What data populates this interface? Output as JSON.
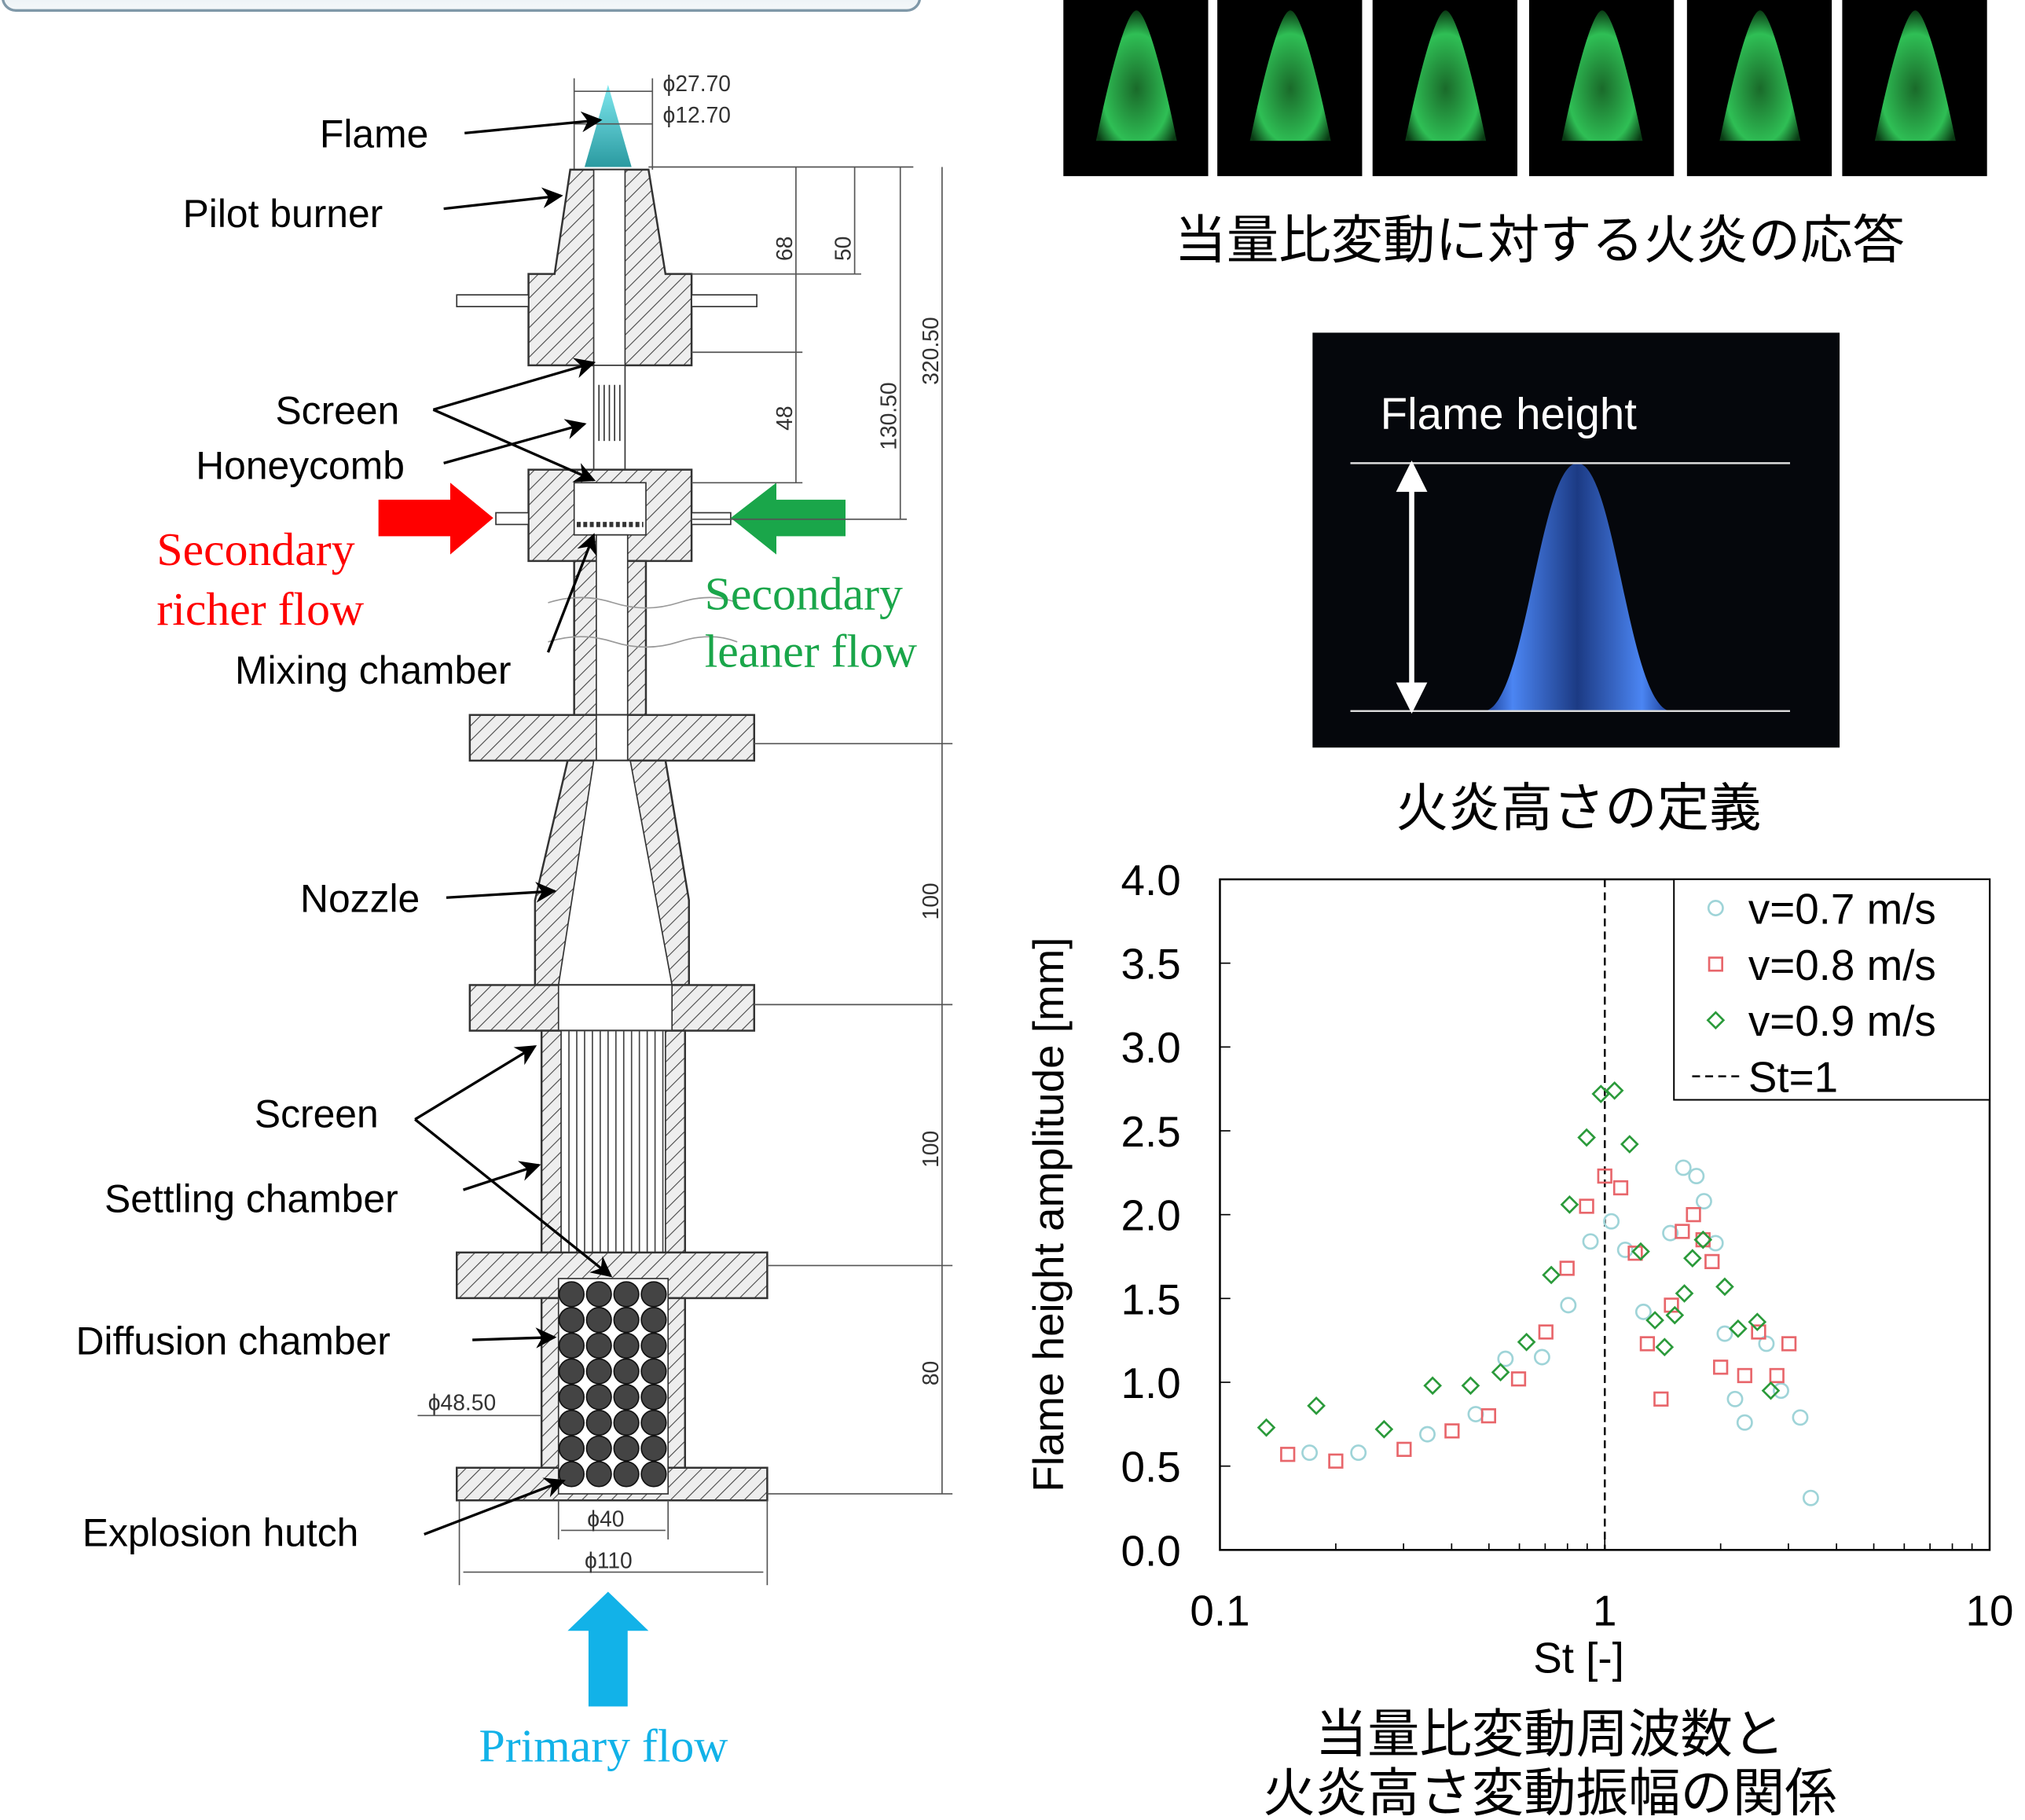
{
  "diagram": {
    "labels": {
      "flame": "Flame",
      "pilot_burner": "Pilot burner",
      "screen_upper": "Screen",
      "honeycomb": "Honeycomb",
      "secondary_richer_flow": [
        "Secondary",
        "richer flow"
      ],
      "mixing_chamber": "Mixing chamber",
      "secondary_leaner_flow": [
        "Secondary",
        "leaner flow"
      ],
      "nozzle": "Nozzle",
      "screen_lower": "Screen",
      "settling_chamber": "Settling chamber",
      "diffusion_chamber": "Diffusion chamber",
      "explosion_hutch": "Explosion hutch",
      "primary_flow": "Primary flow"
    },
    "dimensions": {
      "d_27_70": "ϕ27.70",
      "d_12_70": "ϕ12.70",
      "l_68": "68",
      "l_50": "50",
      "l_48": "48",
      "l_130_50": "130.50",
      "l_320_50": "320.50",
      "l_100_a": "100",
      "l_100_b": "100",
      "l_80": "80",
      "d_48_50": "ϕ48.50",
      "d_40": "ϕ40",
      "d_110": "ϕ110"
    }
  },
  "response_caption": "当量比変動に対する火炎の応答",
  "flame_height_panel": {
    "label": "Flame height",
    "caption": "火炎高さの定義"
  },
  "chart_data": {
    "type": "scatter",
    "x_label": "St [-]",
    "y_label": "Flame height amplitude [mm]",
    "caption": [
      "当量比変動周波数と",
      "火炎高さ変動振幅の関係"
    ],
    "x_scale": "log",
    "xlim": [
      0.1,
      10
    ],
    "xticks": [
      0.1,
      1,
      10
    ],
    "ylim": [
      0,
      4
    ],
    "yticks": [
      {
        "value": 0,
        "label": "0.0"
      },
      {
        "value": 0.5,
        "label": "0.5"
      },
      {
        "value": 1,
        "label": "1.0"
      },
      {
        "value": 1.5,
        "label": "1.5"
      },
      {
        "value": 2,
        "label": "2.0"
      },
      {
        "value": 2.5,
        "label": "2.5"
      },
      {
        "value": 3,
        "label": "3.0"
      },
      {
        "value": 3.5,
        "label": "3.5"
      },
      {
        "value": 4,
        "label": "4.0"
      }
    ],
    "grid": false,
    "legend": "top-right",
    "series": [
      {
        "name": "v=0.7 m/s",
        "color": "#9fd4d8",
        "marker": "circle",
        "x": [
          0.171,
          0.229,
          0.346,
          0.462,
          0.552,
          0.687,
          0.804,
          0.918,
          1.04,
          1.13,
          1.26,
          1.48,
          1.6,
          1.73,
          1.81,
          1.94,
          2.05,
          2.18,
          2.31,
          2.63,
          2.87,
          3.22,
          3.43
        ],
        "values": [
          0.58,
          0.58,
          0.69,
          0.81,
          1.14,
          1.15,
          1.46,
          1.84,
          1.96,
          1.79,
          1.42,
          1.89,
          2.28,
          2.23,
          2.08,
          1.83,
          1.29,
          0.9,
          0.76,
          1.23,
          0.95,
          0.79,
          0.31
        ]
      },
      {
        "name": "v=0.8 m/s",
        "color": "#e8666b",
        "marker": "square",
        "x": [
          0.15,
          0.2,
          0.301,
          0.401,
          0.499,
          0.597,
          0.703,
          0.798,
          0.897,
          1.0,
          1.1,
          1.2,
          1.29,
          1.4,
          1.49,
          1.59,
          1.7,
          1.8,
          1.9,
          2.0,
          2.31,
          2.51,
          2.8,
          3.01
        ],
        "values": [
          0.57,
          0.53,
          0.6,
          0.71,
          0.8,
          1.02,
          1.3,
          1.68,
          2.05,
          2.23,
          2.16,
          1.77,
          1.23,
          0.9,
          1.46,
          1.9,
          2.0,
          1.85,
          1.72,
          1.09,
          1.04,
          1.3,
          1.04,
          1.23
        ]
      },
      {
        "name": "v=0.9 m/s",
        "color": "#2a9a3a",
        "marker": "diamond",
        "x": [
          0.132,
          0.178,
          0.267,
          0.357,
          0.448,
          0.536,
          0.626,
          0.726,
          0.81,
          0.897,
          0.977,
          1.06,
          1.16,
          1.24,
          1.35,
          1.43,
          1.52,
          1.61,
          1.69,
          1.8,
          2.05,
          2.22,
          2.49,
          2.7
        ],
        "values": [
          0.73,
          0.86,
          0.72,
          0.98,
          0.98,
          1.06,
          1.24,
          1.64,
          2.06,
          2.46,
          2.72,
          2.74,
          2.42,
          1.78,
          1.37,
          1.21,
          1.4,
          1.53,
          1.74,
          1.85,
          1.57,
          1.32,
          1.36,
          0.95
        ]
      }
    ],
    "vline": {
      "name": "St=1",
      "x": 1,
      "color": "#000000",
      "style": "dashed"
    }
  }
}
